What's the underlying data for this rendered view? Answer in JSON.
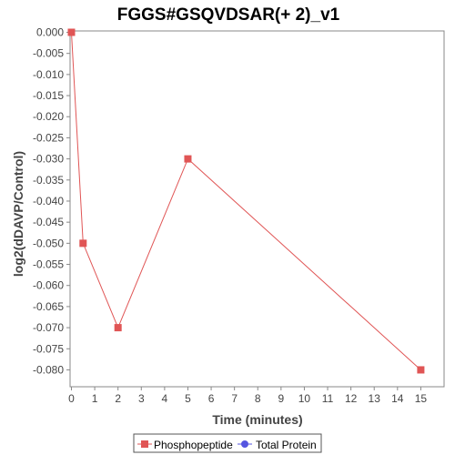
{
  "chart_data": {
    "type": "line",
    "title": "FGGS#GSQVDSAR(+ 2)_v1",
    "xlabel": "Time (minutes)",
    "ylabel": "log2(dDAVP/Control)",
    "xlim": [
      0,
      16
    ],
    "ylim": [
      -0.084,
      0.0
    ],
    "x_ticks": [
      0,
      1,
      2,
      3,
      4,
      5,
      6,
      7,
      8,
      9,
      10,
      11,
      12,
      13,
      14,
      15
    ],
    "y_ticks": [
      0.0,
      -0.005,
      -0.01,
      -0.015,
      -0.02,
      -0.025,
      -0.03,
      -0.035,
      -0.04,
      -0.045,
      -0.05,
      -0.055,
      -0.06,
      -0.065,
      -0.07,
      -0.075,
      -0.08
    ],
    "y_tick_labels": [
      "0.000",
      "-0.005",
      "-0.010",
      "-0.015",
      "-0.020",
      "-0.025",
      "-0.030",
      "-0.035",
      "-0.040",
      "-0.045",
      "-0.050",
      "-0.055",
      "-0.060",
      "-0.065",
      "-0.070",
      "-0.075",
      "-0.080"
    ],
    "grid": false,
    "legend_position": "bottom",
    "series": [
      {
        "name": "Phosphopeptide",
        "color": "#e05555",
        "marker": "square",
        "x": [
          0,
          0.5,
          2,
          5,
          15
        ],
        "y": [
          0.0,
          -0.05,
          -0.07,
          -0.03,
          -0.08
        ]
      },
      {
        "name": "Total Protein",
        "color": "#5555e0",
        "marker": "circle",
        "x": [],
        "y": []
      }
    ]
  }
}
